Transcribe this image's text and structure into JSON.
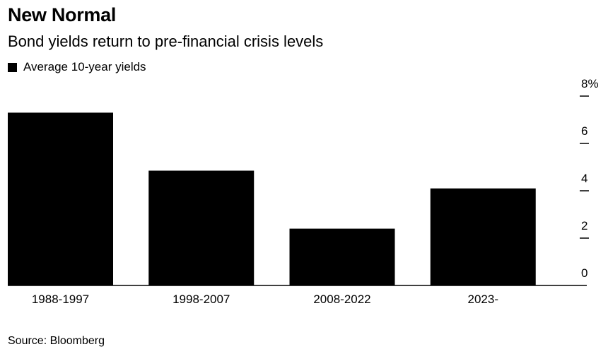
{
  "chart_data": {
    "type": "bar",
    "title": "New Normal",
    "subtitle": "Bond yields return to pre-financial crisis levels",
    "legend": [
      {
        "name": "Average 10-year yields",
        "color": "#000000"
      }
    ],
    "legend_position": "top-left",
    "categories": [
      "1988-1997",
      "1998-2007",
      "2008-2022",
      "2023-"
    ],
    "series": [
      {
        "name": "Average 10-year yields",
        "values": [
          7.3,
          4.85,
          2.4,
          4.1
        ]
      }
    ],
    "y_ticks": [
      "0",
      "2",
      "4",
      "6",
      "8%"
    ],
    "y_tick_values": [
      0,
      2,
      4,
      6,
      8
    ],
    "ylim": [
      0,
      8
    ],
    "y_axis_position": "right",
    "grid": false,
    "bar_color": "#000000",
    "source": "Source: Bloomberg"
  }
}
